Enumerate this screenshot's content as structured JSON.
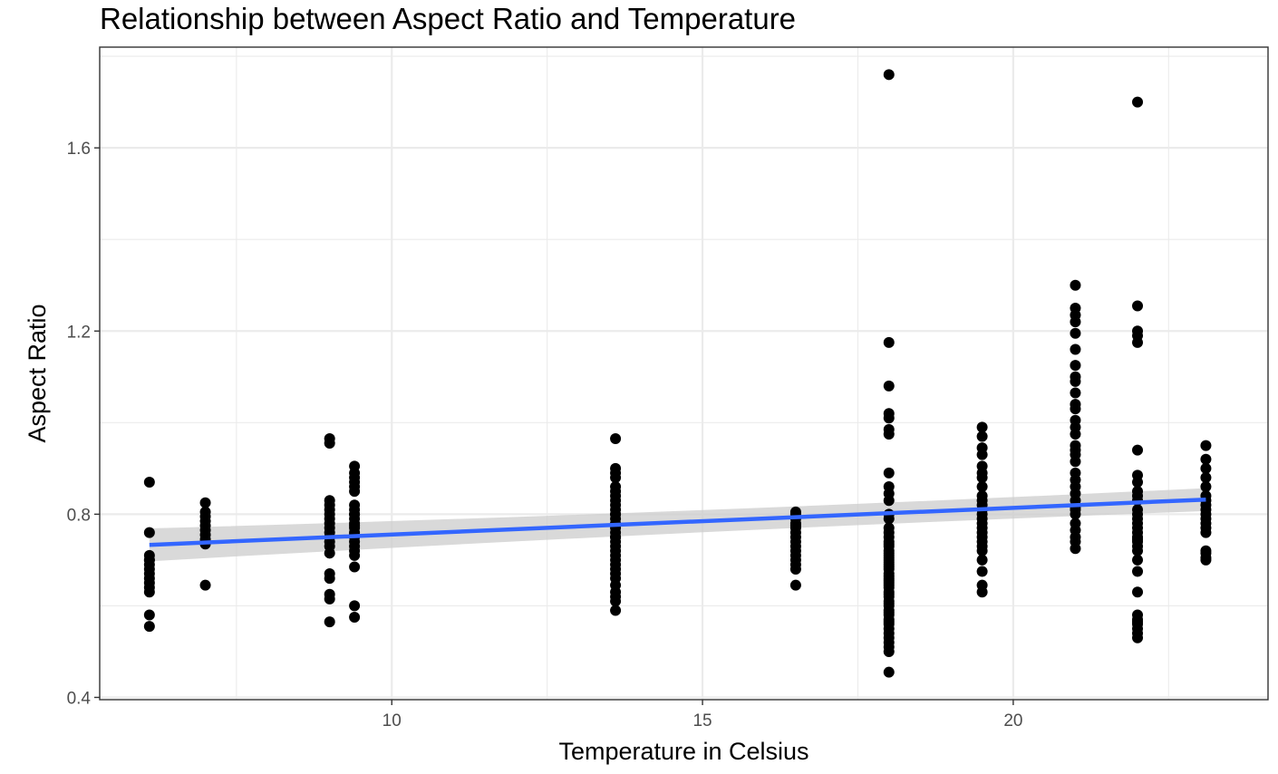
{
  "chart_data": {
    "type": "scatter",
    "title": "Relationship between Aspect Ratio and Temperature",
    "xlabel": "Temperature in Celsius",
    "ylabel": "Aspect Ratio",
    "xlim": [
      5.3,
      24.1
    ],
    "ylim": [
      0.395,
      1.82
    ],
    "x_ticks": [
      10,
      15,
      20
    ],
    "x_tick_labels": [
      "10",
      "15",
      "20"
    ],
    "y_ticks": [
      0.4,
      0.8,
      1.2,
      1.6
    ],
    "y_tick_labels": [
      "0.4",
      "0.8",
      "1.2",
      "1.6"
    ],
    "grid": true,
    "legend": "none",
    "colors": {
      "points": "#000000",
      "fit_line": "#3366ff",
      "confidence_band": "#cccccc",
      "grid": "#ebebeb",
      "panel_border": "#333333"
    },
    "series": [
      {
        "x": [
          6.1,
          6.1,
          6.1,
          6.1,
          6.1,
          6.1,
          6.1,
          6.1,
          6.1,
          6.1,
          6.1,
          6.1,
          6.1,
          6.1,
          7.0,
          7.0,
          7.0,
          7.0,
          7.0,
          7.0,
          7.0,
          7.0,
          7.0,
          7.0,
          7.0,
          9.0,
          9.0,
          9.0,
          9.0,
          9.0,
          9.0,
          9.0,
          9.0,
          9.0,
          9.0,
          9.0,
          9.0,
          9.0,
          9.0,
          9.0,
          9.0,
          9.0,
          9.0,
          9.0,
          9.4,
          9.4,
          9.4,
          9.4,
          9.4,
          9.4,
          9.4,
          9.4,
          9.4,
          9.4,
          9.4,
          9.4,
          9.4,
          9.4,
          9.4,
          9.4,
          9.4,
          9.4,
          9.4,
          9.4,
          9.4,
          9.4,
          9.4,
          9.4,
          13.6,
          13.6,
          13.6,
          13.6,
          13.6,
          13.6,
          13.6,
          13.6,
          13.6,
          13.6,
          13.6,
          13.6,
          13.6,
          13.6,
          13.6,
          13.6,
          13.6,
          13.6,
          13.6,
          13.6,
          13.6,
          13.6,
          13.6,
          13.6,
          13.6,
          13.6,
          13.6,
          13.6,
          13.6,
          13.6,
          13.6,
          13.6,
          13.6,
          16.5,
          16.5,
          16.5,
          16.5,
          16.5,
          16.5,
          16.5,
          16.5,
          16.5,
          16.5,
          16.5,
          16.5,
          16.5,
          16.5,
          16.5,
          16.5,
          18.0,
          18.0,
          18.0,
          18.0,
          18.0,
          18.0,
          18.0,
          18.0,
          18.0,
          18.0,
          18.0,
          18.0,
          18.0,
          18.0,
          18.0,
          18.0,
          18.0,
          18.0,
          18.0,
          18.0,
          18.0,
          18.0,
          18.0,
          18.0,
          18.0,
          18.0,
          18.0,
          18.0,
          18.0,
          18.0,
          18.0,
          18.0,
          18.0,
          18.0,
          18.0,
          18.0,
          18.0,
          18.0,
          18.0,
          18.0,
          18.0,
          18.0,
          18.0,
          18.0,
          18.0,
          18.0,
          18.0,
          18.0,
          18.0,
          18.0,
          18.0,
          18.0,
          18.0,
          18.0,
          19.5,
          19.5,
          19.5,
          19.5,
          19.5,
          19.5,
          19.5,
          19.5,
          19.5,
          19.5,
          19.5,
          19.5,
          19.5,
          19.5,
          19.5,
          19.5,
          19.5,
          19.5,
          19.5,
          19.5,
          19.5,
          19.5,
          19.5,
          19.5,
          19.5,
          21.0,
          21.0,
          21.0,
          21.0,
          21.0,
          21.0,
          21.0,
          21.0,
          21.0,
          21.0,
          21.0,
          21.0,
          21.0,
          21.0,
          21.0,
          21.0,
          21.0,
          21.0,
          21.0,
          21.0,
          21.0,
          21.0,
          21.0,
          21.0,
          21.0,
          21.0,
          21.0,
          21.0,
          21.0,
          21.0,
          21.0,
          21.0,
          22.0,
          22.0,
          22.0,
          22.0,
          22.0,
          22.0,
          22.0,
          22.0,
          22.0,
          22.0,
          22.0,
          22.0,
          22.0,
          22.0,
          22.0,
          22.0,
          22.0,
          22.0,
          22.0,
          22.0,
          22.0,
          22.0,
          22.0,
          22.0,
          22.0,
          22.0,
          22.0,
          22.0,
          22.0,
          22.0,
          22.0,
          22.0,
          23.1,
          23.1,
          23.1,
          23.1,
          23.1,
          23.1,
          23.1,
          23.1,
          23.1,
          23.1,
          23.1,
          23.1,
          23.1,
          23.1,
          23.1,
          23.1,
          23.1,
          23.1
        ],
        "y": [
          0.87,
          0.76,
          0.71,
          0.7,
          0.69,
          0.68,
          0.67,
          0.66,
          0.65,
          0.64,
          0.63,
          0.58,
          0.555,
          0.7,
          0.825,
          0.805,
          0.795,
          0.785,
          0.775,
          0.765,
          0.755,
          0.745,
          0.74,
          0.735,
          0.645,
          0.965,
          0.955,
          0.83,
          0.82,
          0.81,
          0.8,
          0.79,
          0.78,
          0.77,
          0.76,
          0.75,
          0.74,
          0.73,
          0.715,
          0.67,
          0.66,
          0.625,
          0.615,
          0.565,
          0.905,
          0.89,
          0.88,
          0.87,
          0.86,
          0.85,
          0.82,
          0.81,
          0.8,
          0.79,
          0.78,
          0.775,
          0.77,
          0.76,
          0.755,
          0.75,
          0.74,
          0.73,
          0.72,
          0.71,
          0.685,
          0.6,
          0.575,
          0.8,
          0.965,
          0.9,
          0.89,
          0.88,
          0.86,
          0.85,
          0.84,
          0.83,
          0.82,
          0.81,
          0.8,
          0.79,
          0.78,
          0.775,
          0.77,
          0.76,
          0.75,
          0.74,
          0.73,
          0.72,
          0.71,
          0.7,
          0.69,
          0.68,
          0.67,
          0.66,
          0.645,
          0.63,
          0.62,
          0.61,
          0.59,
          0.8,
          0.75,
          0.805,
          0.8,
          0.79,
          0.78,
          0.77,
          0.76,
          0.75,
          0.74,
          0.73,
          0.72,
          0.71,
          0.7,
          0.69,
          0.68,
          0.645,
          0.775,
          1.76,
          1.175,
          1.08,
          1.02,
          1.01,
          0.985,
          0.975,
          0.89,
          0.86,
          0.845,
          0.83,
          0.8,
          0.79,
          0.77,
          0.76,
          0.75,
          0.74,
          0.735,
          0.73,
          0.72,
          0.71,
          0.7,
          0.69,
          0.68,
          0.67,
          0.66,
          0.655,
          0.65,
          0.64,
          0.63,
          0.62,
          0.61,
          0.6,
          0.59,
          0.58,
          0.57,
          0.56,
          0.55,
          0.54,
          0.53,
          0.52,
          0.51,
          0.5,
          0.455,
          0.715,
          0.705,
          0.695,
          0.685,
          0.665,
          0.645,
          0.625,
          0.605,
          0.585,
          0.565,
          0.99,
          0.97,
          0.945,
          0.93,
          0.905,
          0.89,
          0.88,
          0.86,
          0.84,
          0.83,
          0.82,
          0.81,
          0.8,
          0.79,
          0.78,
          0.77,
          0.76,
          0.75,
          0.74,
          0.73,
          0.72,
          0.7,
          0.675,
          0.645,
          0.63,
          1.3,
          1.25,
          1.235,
          1.22,
          1.195,
          1.16,
          1.125,
          1.1,
          1.09,
          1.065,
          1.04,
          1.03,
          1.005,
          0.99,
          0.975,
          0.95,
          0.94,
          0.93,
          0.915,
          0.89,
          0.875,
          0.86,
          0.845,
          0.83,
          0.815,
          0.8,
          0.78,
          0.765,
          0.75,
          0.74,
          0.725,
          0.81,
          1.7,
          1.255,
          1.2,
          1.19,
          1.175,
          0.94,
          0.885,
          0.87,
          0.85,
          0.84,
          0.83,
          0.81,
          0.8,
          0.79,
          0.78,
          0.77,
          0.76,
          0.75,
          0.745,
          0.74,
          0.73,
          0.72,
          0.7,
          0.675,
          0.63,
          0.58,
          0.57,
          0.565,
          0.56,
          0.55,
          0.54,
          0.53,
          0.95,
          0.92,
          0.9,
          0.88,
          0.86,
          0.84,
          0.83,
          0.82,
          0.81,
          0.8,
          0.79,
          0.78,
          0.77,
          0.76,
          0.72,
          0.715,
          0.705,
          0.7
        ]
      }
    ],
    "fit": {
      "method": "linear",
      "x": [
        6.1,
        23.1
      ],
      "y": [
        0.733,
        0.832
      ],
      "ci_lower": [
        0.697,
        0.807
      ],
      "ci_upper": [
        0.769,
        0.857
      ]
    }
  }
}
